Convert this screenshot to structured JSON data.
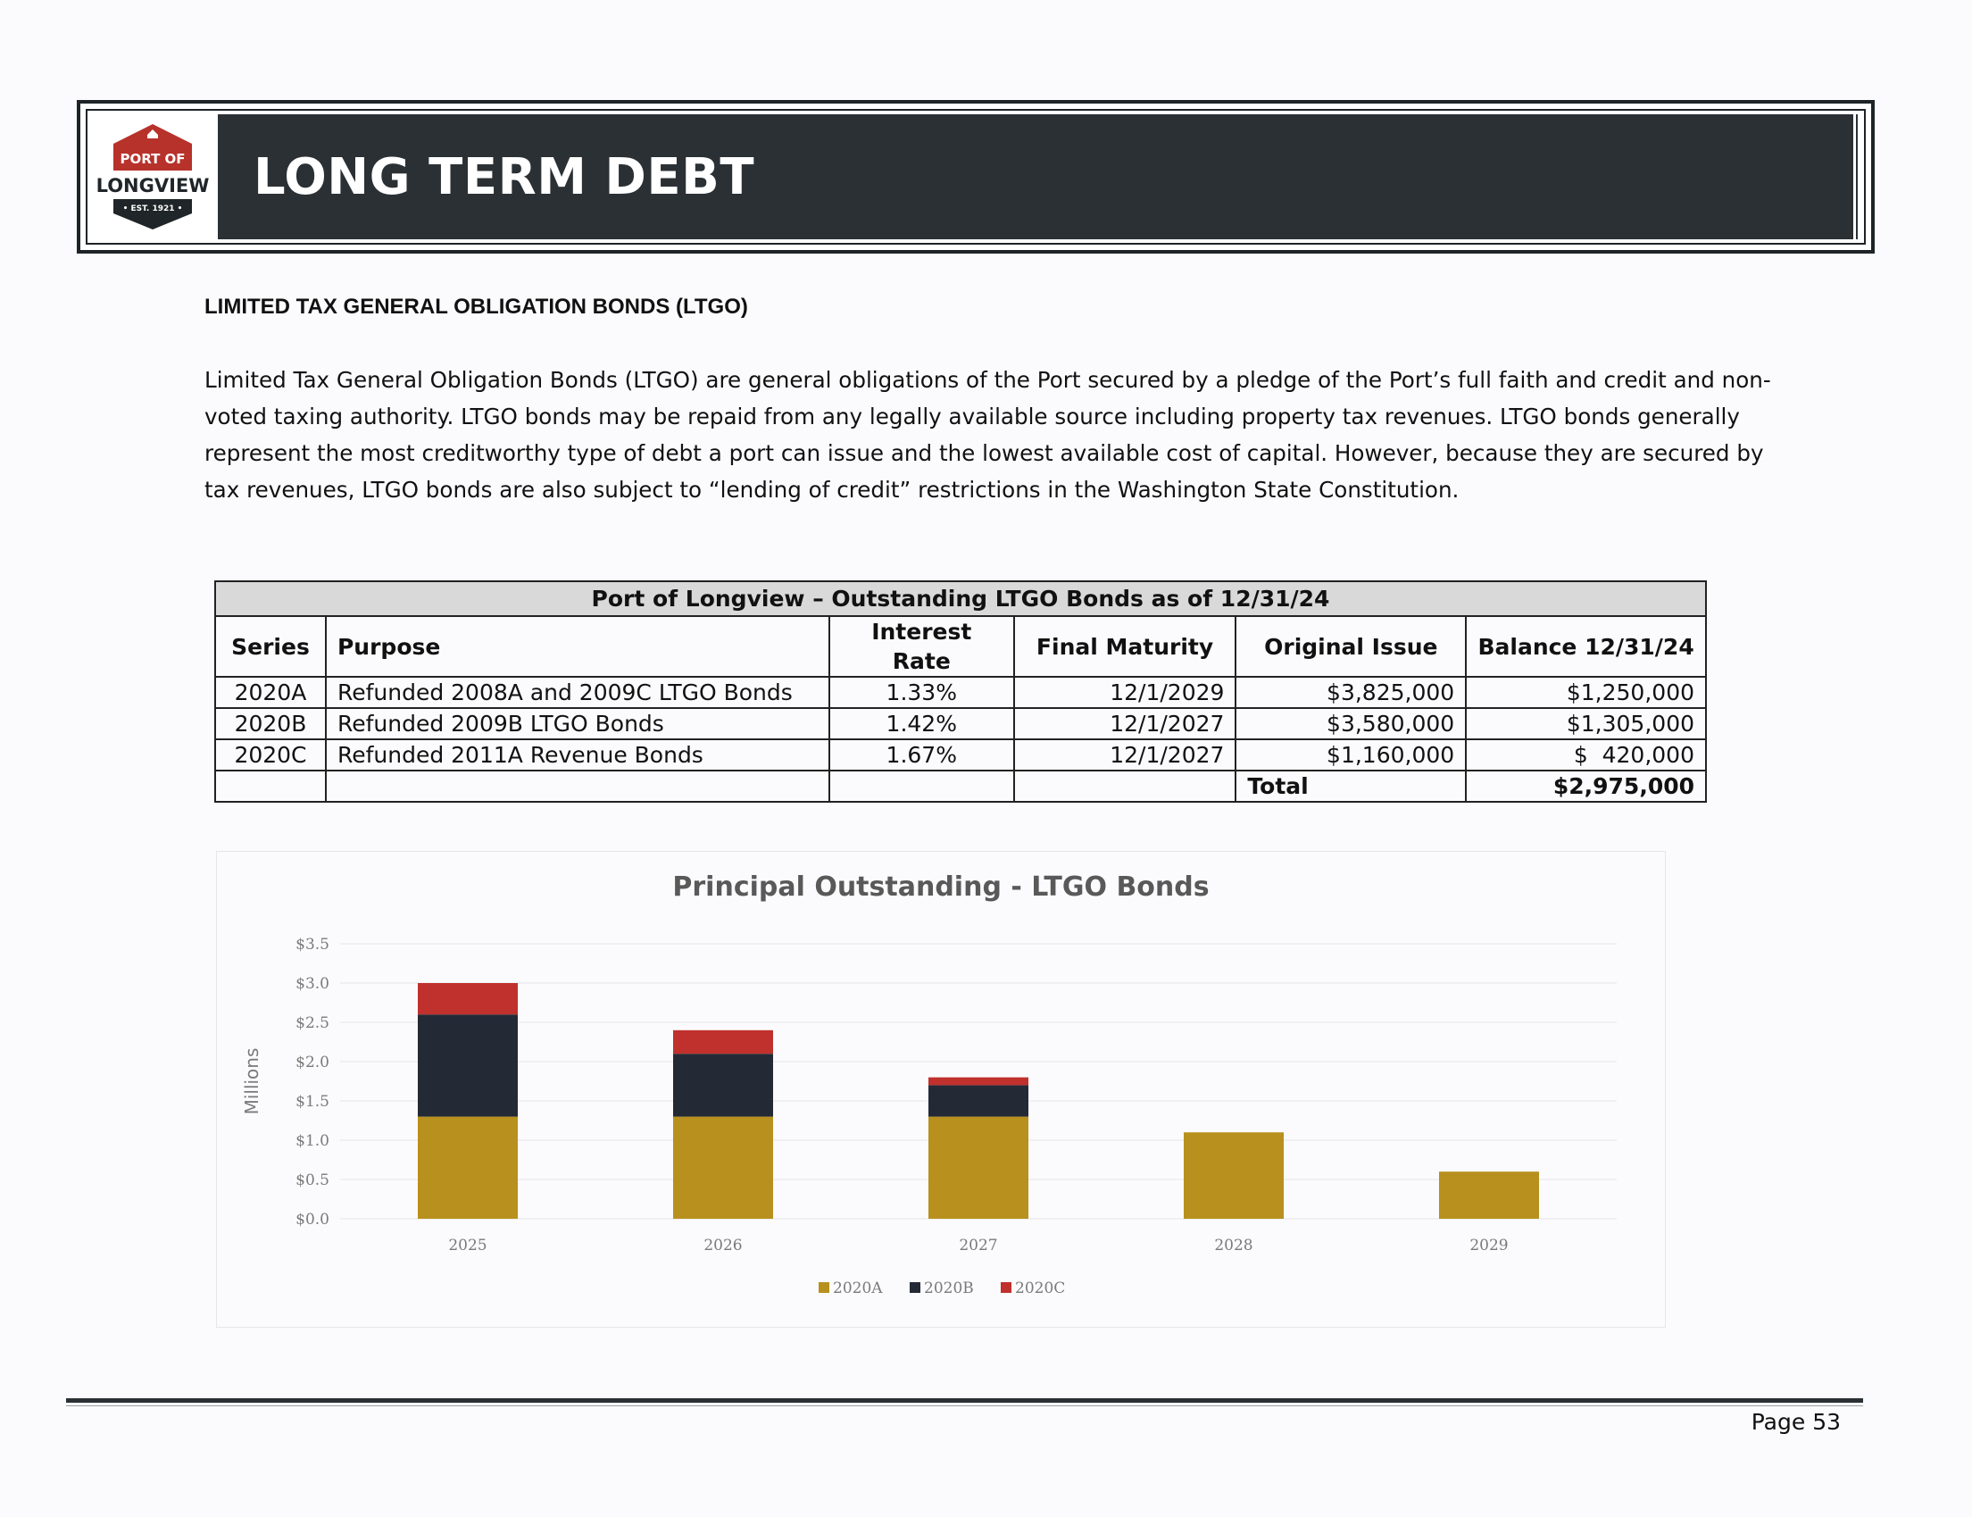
{
  "header": {
    "logo": {
      "line1": "PORT OF",
      "line2": "LONGVIEW",
      "line3": "• EST. 1921 •"
    },
    "title": "LONG TERM DEBT"
  },
  "section": {
    "heading": "LIMITED TAX GENERAL OBLIGATION BONDS (LTGO)",
    "paragraph": "Limited Tax General Obligation Bonds (LTGO) are general obligations of the Port secured by a pledge of the Port’s full faith and credit and non-voted taxing authority.  LTGO bonds may be repaid from any legally available source including property tax revenues.  LTGO bonds generally represent the most creditworthy type of debt a port can issue and the lowest available cost of capital.  However, because they are secured by tax revenues, LTGO bonds are also subject to “lending of credit” restrictions in the Washington State Constitution."
  },
  "table": {
    "caption": "Port of Longview – Outstanding LTGO Bonds as of 12/31/24",
    "columns": [
      "Series",
      "Purpose",
      "Interest Rate",
      "Final Maturity",
      "Original Issue",
      "Balance 12/31/24"
    ],
    "rows": [
      [
        "2020A",
        "Refunded 2008A and 2009C LTGO Bonds",
        "1.33%",
        "12/1/2029",
        "$3,825,000",
        "$1,250,000"
      ],
      [
        "2020B",
        "Refunded 2009B LTGO Bonds",
        "1.42%",
        "12/1/2027",
        "$3,580,000",
        "$1,305,000"
      ],
      [
        "2020C",
        "Refunded 2011A Revenue Bonds",
        "1.67%",
        "12/1/2027",
        "$1,160,000",
        "$  420,000"
      ]
    ],
    "total_label": "Total",
    "total_value": "$2,975,000"
  },
  "chart_data": {
    "type": "bar",
    "stacked": true,
    "title": "Principal Outstanding - LTGO Bonds",
    "ylabel": "Millions",
    "xlabel": "",
    "ylim": [
      0,
      3.5
    ],
    "ytick_labels": [
      "$0.0",
      "$0.5",
      "$1.0",
      "$1.5",
      "$2.0",
      "$2.5",
      "$3.0",
      "$3.5"
    ],
    "categories": [
      "2025",
      "2026",
      "2027",
      "2028",
      "2029"
    ],
    "series": [
      {
        "name": "2020A",
        "color": "#b8901e",
        "values": [
          1.3,
          1.3,
          1.3,
          1.1,
          0.6
        ]
      },
      {
        "name": "2020B",
        "color": "#232a36",
        "values": [
          1.3,
          0.8,
          0.4,
          0,
          0
        ]
      },
      {
        "name": "2020C",
        "color": "#c0302c",
        "values": [
          0.4,
          0.3,
          0.1,
          0,
          0
        ]
      }
    ],
    "grid": true,
    "legend_position": "bottom"
  },
  "footer": {
    "page": "Page 53"
  }
}
